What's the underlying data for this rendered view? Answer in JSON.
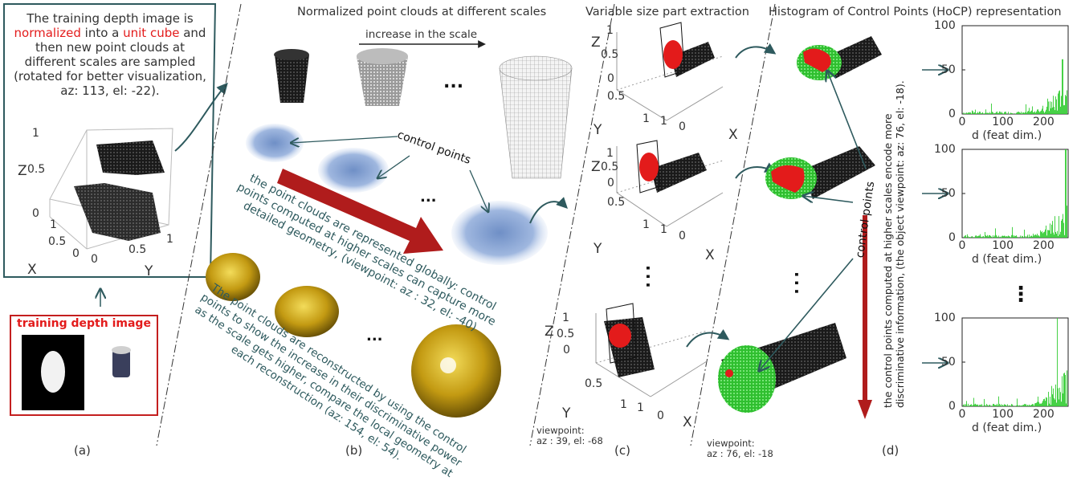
{
  "panel_a": {
    "caption_line1": "The training depth image is",
    "caption_red1": "normalized",
    "caption_mid": " into a ",
    "caption_red2": "unit cube",
    "caption_after": " and",
    "caption_line3": "then new point clouds at",
    "caption_line4": "different scales are sampled",
    "caption_line5": "(rotated for better visualization,",
    "caption_line6": "az: 113, el: -22).",
    "plot": {
      "z_axis": "Z",
      "x_axis": "X",
      "y_axis": "Y",
      "z_ticks": [
        "1",
        "0.5",
        "0"
      ],
      "x_ticks": [
        "1",
        "0.5",
        "0"
      ],
      "y_ticks": [
        "0",
        "0.5",
        "1"
      ]
    },
    "training_label": "training depth image",
    "label": "(a)"
  },
  "panel_b": {
    "title": "Normalized point clouds at different scales",
    "scale_arrow_label": "increase in the scale",
    "ellipsis": "...",
    "control_points": "control points",
    "global_text": [
      "the point clouds are represented globally: control",
      "points computed at higher scales can capture more",
      "detailed geometry, (viewpoint: az : 32, el: -40)"
    ],
    "recon_text": [
      "The point clouds are reconstructed by using the control",
      "points to show the increase in their discriminative power",
      "as the scale gets higher, compare the local geometry at",
      "each reconstruction (az: 154, el: 54)."
    ],
    "label": "(b)"
  },
  "panel_c": {
    "title": "Variable size part extraction",
    "plots": [
      {
        "z": "Z",
        "y": "Y",
        "x": "X",
        "z_ticks": [
          "1",
          "0.5",
          "0"
        ],
        "y_ticks": [
          "0.5",
          "1"
        ],
        "x_ticks": [
          "1",
          "0"
        ]
      },
      {
        "z": "Z",
        "y": "Y",
        "x": "X",
        "z_ticks": [
          "1",
          "0.5",
          "0"
        ],
        "y_ticks": [
          "0.5",
          "1"
        ],
        "x_ticks": [
          "1",
          "0"
        ]
      },
      {
        "z": "Z",
        "y": "Y",
        "x": "X",
        "z_ticks": [
          "1",
          "0.5",
          "0"
        ],
        "y_ticks": [
          "0.5",
          "1"
        ],
        "x_ticks": [
          "1",
          "0"
        ]
      }
    ],
    "dots": ". . .",
    "viewpoint_label": "viewpoint:",
    "viewpoint_value": "az : 39, el: -68",
    "label": "(c)"
  },
  "panel_d": {
    "title": "Histogram of Control Points (HoCP) representation",
    "control_points": "control points",
    "viewpoint_label": "viewpoint:",
    "viewpoint_value": "az : 76, el: -18",
    "side_text": [
      "the control points computed at higher scales encode more",
      "discriminative information, (the object viewpoint: az: 76, el: -18)."
    ],
    "dots": ". . .",
    "label": "(d)"
  },
  "histograms": {
    "y_ticks": [
      "100",
      "50",
      "0"
    ],
    "x_ticks": [
      "0",
      "100",
      "200"
    ],
    "xlabel": "d (feat dim.)",
    "vdots": "⋮"
  },
  "colors": {
    "green": "#33cc33",
    "red": "#e31b1b",
    "teal": "#2e5a5e",
    "darkred": "#b01c1c",
    "blue": "#8fa9d6",
    "gold": "#c9a218"
  },
  "chart_data": [
    {
      "type": "bar",
      "x": [
        0,
        100,
        200
      ],
      "ylim": [
        0,
        100
      ],
      "xlim": [
        0,
        260
      ],
      "xlabel": "d (feat dim.)",
      "y_tick_labels": [
        "0",
        "50",
        "100"
      ],
      "trend": "near zero across most bins, rising spikes toward the high-dimension end (maximum near 60 around d≈250)"
    },
    {
      "type": "bar",
      "x": [
        0,
        100,
        200
      ],
      "ylim": [
        0,
        100
      ],
      "xlim": [
        0,
        260
      ],
      "xlabel": "d (feat dim.)",
      "y_tick_labels": [
        "0",
        "50",
        "100"
      ],
      "trend": "near zero across most bins, rising spikes toward the high-dimension end (maximum 100 near d≈255)"
    },
    {
      "type": "bar",
      "x": [
        0,
        100,
        200
      ],
      "ylim": [
        0,
        100
      ],
      "xlim": [
        0,
        260
      ],
      "xlabel": "d (feat dim.)",
      "y_tick_labels": [
        "0",
        "50",
        "100"
      ],
      "trend": "near zero across most bins, rising spikes toward the high-dimension end (maximum 100 near d≈235)"
    }
  ]
}
